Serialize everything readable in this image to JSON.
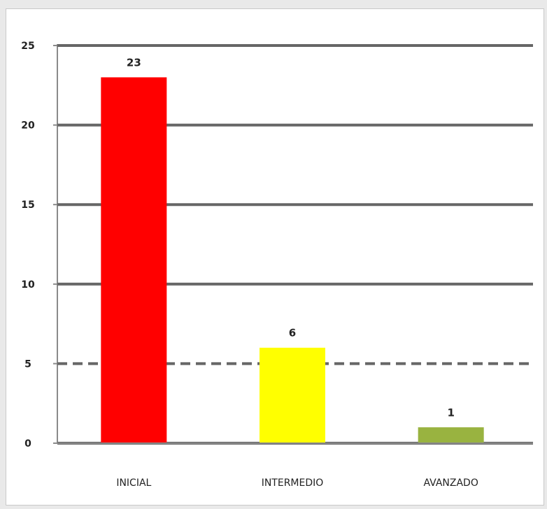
{
  "chart_data": {
    "type": "bar",
    "title": "",
    "xlabel": "",
    "ylabel": "",
    "categories": [
      "INICIAL",
      "INTERMEDIO",
      "AVANZADO"
    ],
    "values": [
      23,
      6,
      1
    ],
    "data_labels": [
      "23",
      "6",
      "1"
    ],
    "ylim": [
      0,
      25
    ],
    "yticks": [
      0,
      5,
      10,
      15,
      20,
      25
    ],
    "ytick_labels": [
      "0",
      "5",
      "10",
      "15",
      "20",
      "25"
    ],
    "grid": true,
    "legend": "none",
    "colors": [
      "#ff0000",
      "#ffff00",
      "#99b340"
    ],
    "gridline_color": "#666666"
  }
}
